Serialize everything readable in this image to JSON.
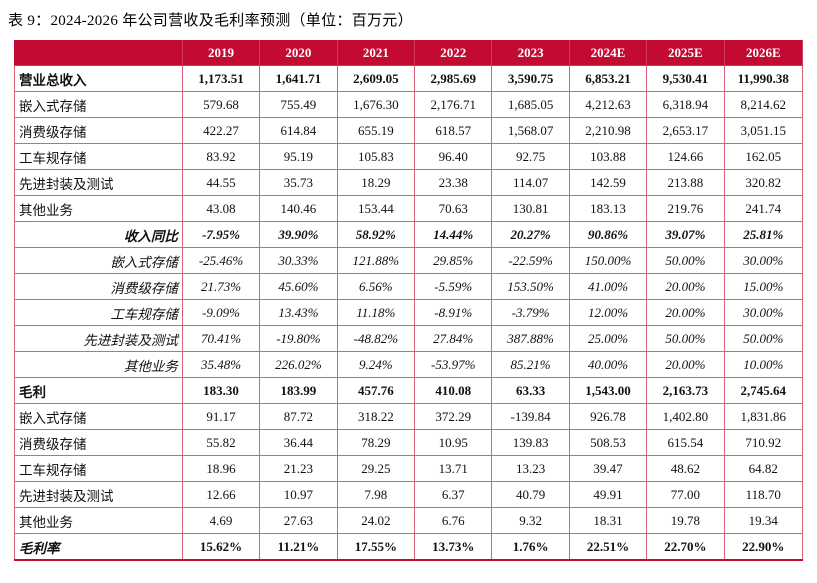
{
  "title": "表 9：2024-2026 年公司营收及毛利率预测（单位：百万元）",
  "colors": {
    "header_bg": "#C30A32",
    "header_text": "#FFFFFF",
    "grid_border": "#DB6279",
    "bottom_border": "#C30A32",
    "body_text": "#111111"
  },
  "table": {
    "columns": [
      "",
      "2019",
      "2020",
      "2021",
      "2022",
      "2023",
      "2024E",
      "2025E",
      "2026E"
    ],
    "rows": [
      {
        "label": "营业总收入",
        "label_style": "bold",
        "label_align": "left",
        "value_style": "bold",
        "values": [
          "1,173.51",
          "1,641.71",
          "2,609.05",
          "2,985.69",
          "3,590.75",
          "6,853.21",
          "9,530.41",
          "11,990.38"
        ]
      },
      {
        "label": "嵌入式存储",
        "label_style": "regular",
        "label_align": "left",
        "value_style": "regular",
        "values": [
          "579.68",
          "755.49",
          "1,676.30",
          "2,176.71",
          "1,685.05",
          "4,212.63",
          "6,318.94",
          "8,214.62"
        ]
      },
      {
        "label": "消费级存储",
        "label_style": "regular",
        "label_align": "left",
        "value_style": "regular",
        "values": [
          "422.27",
          "614.84",
          "655.19",
          "618.57",
          "1,568.07",
          "2,210.98",
          "2,653.17",
          "3,051.15"
        ]
      },
      {
        "label": "工车规存储",
        "label_style": "regular",
        "label_align": "left",
        "value_style": "regular",
        "values": [
          "83.92",
          "95.19",
          "105.83",
          "96.40",
          "92.75",
          "103.88",
          "124.66",
          "162.05"
        ]
      },
      {
        "label": "先进封装及测试",
        "label_style": "regular",
        "label_align": "left",
        "value_style": "regular",
        "values": [
          "44.55",
          "35.73",
          "18.29",
          "23.38",
          "114.07",
          "142.59",
          "213.88",
          "320.82"
        ]
      },
      {
        "label": "其他业务",
        "label_style": "regular",
        "label_align": "left",
        "value_style": "regular",
        "values": [
          "43.08",
          "140.46",
          "153.44",
          "70.63",
          "130.81",
          "183.13",
          "219.76",
          "241.74"
        ]
      },
      {
        "label": "收入同比",
        "label_style": "bold-italic",
        "label_align": "right",
        "value_style": "bold-italic",
        "values": [
          "-7.95%",
          "39.90%",
          "58.92%",
          "14.44%",
          "20.27%",
          "90.86%",
          "39.07%",
          "25.81%"
        ]
      },
      {
        "label": "嵌入式存储",
        "label_style": "italic",
        "label_align": "right",
        "value_style": "italic",
        "values": [
          "-25.46%",
          "30.33%",
          "121.88%",
          "29.85%",
          "-22.59%",
          "150.00%",
          "50.00%",
          "30.00%"
        ]
      },
      {
        "label": "消费级存储",
        "label_style": "italic",
        "label_align": "right",
        "value_style": "italic",
        "values": [
          "21.73%",
          "45.60%",
          "6.56%",
          "-5.59%",
          "153.50%",
          "41.00%",
          "20.00%",
          "15.00%"
        ]
      },
      {
        "label": "工车规存储",
        "label_style": "italic",
        "label_align": "right",
        "value_style": "italic",
        "values": [
          "-9.09%",
          "13.43%",
          "11.18%",
          "-8.91%",
          "-3.79%",
          "12.00%",
          "20.00%",
          "30.00%"
        ]
      },
      {
        "label": "先进封装及测试",
        "label_style": "italic",
        "label_align": "right",
        "value_style": "italic",
        "values": [
          "70.41%",
          "-19.80%",
          "-48.82%",
          "27.84%",
          "387.88%",
          "25.00%",
          "50.00%",
          "50.00%"
        ]
      },
      {
        "label": "其他业务",
        "label_style": "italic",
        "label_align": "right",
        "value_style": "italic",
        "values": [
          "35.48%",
          "226.02%",
          "9.24%",
          "-53.97%",
          "85.21%",
          "40.00%",
          "20.00%",
          "10.00%"
        ]
      },
      {
        "label": "毛利",
        "label_style": "bold",
        "label_align": "left",
        "value_style": "bold",
        "values": [
          "183.30",
          "183.99",
          "457.76",
          "410.08",
          "63.33",
          "1,543.00",
          "2,163.73",
          "2,745.64"
        ]
      },
      {
        "label": "嵌入式存储",
        "label_style": "regular",
        "label_align": "left",
        "value_style": "regular",
        "values": [
          "91.17",
          "87.72",
          "318.22",
          "372.29",
          "-139.84",
          "926.78",
          "1,402.80",
          "1,831.86"
        ]
      },
      {
        "label": "消费级存储",
        "label_style": "regular",
        "label_align": "left",
        "value_style": "regular",
        "values": [
          "55.82",
          "36.44",
          "78.29",
          "10.95",
          "139.83",
          "508.53",
          "615.54",
          "710.92"
        ]
      },
      {
        "label": "工车规存储",
        "label_style": "regular",
        "label_align": "left",
        "value_style": "regular",
        "values": [
          "18.96",
          "21.23",
          "29.25",
          "13.71",
          "13.23",
          "39.47",
          "48.62",
          "64.82"
        ]
      },
      {
        "label": "先进封装及测试",
        "label_style": "regular",
        "label_align": "left",
        "value_style": "regular",
        "values": [
          "12.66",
          "10.97",
          "7.98",
          "6.37",
          "40.79",
          "49.91",
          "77.00",
          "118.70"
        ]
      },
      {
        "label": "其他业务",
        "label_style": "regular",
        "label_align": "left",
        "value_style": "regular",
        "values": [
          "4.69",
          "27.63",
          "24.02",
          "6.76",
          "9.32",
          "18.31",
          "19.78",
          "19.34"
        ]
      },
      {
        "label": "毛利率",
        "label_style": "bold-italic",
        "label_align": "left",
        "value_style": "bold",
        "values": [
          "15.62%",
          "11.21%",
          "17.55%",
          "13.73%",
          "1.76%",
          "22.51%",
          "22.70%",
          "22.90%"
        ]
      }
    ]
  }
}
